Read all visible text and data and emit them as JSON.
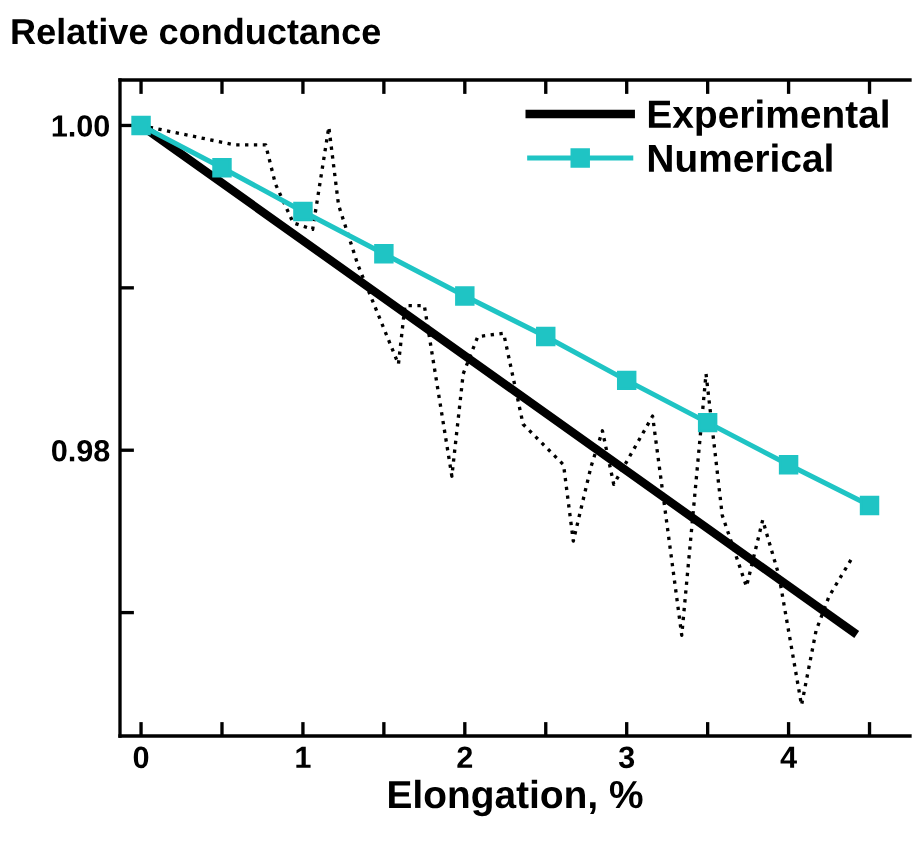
{
  "chart_data": {
    "type": "line",
    "title": "Relative conductance",
    "xlabel": "Elongation, %",
    "xlim": [
      -0.13,
      4.75
    ],
    "ylim": [
      0.9624,
      1.0028
    ],
    "xticks": [
      0,
      {
        "value": 0.5,
        "label": null
      },
      1,
      {
        "value": 1.5,
        "label": null
      },
      2,
      {
        "value": 2.5,
        "label": null
      },
      3,
      {
        "value": 3.5,
        "label": null
      },
      4,
      {
        "value": 4.5,
        "label": null
      }
    ],
    "yticks": [
      {
        "value": 1.0,
        "label": "1.00"
      },
      {
        "value": 0.99,
        "label": null
      },
      {
        "value": 0.98,
        "label": "0.98"
      },
      {
        "value": 0.97,
        "label": null
      }
    ],
    "legend": "top right",
    "grid": false,
    "series": [
      {
        "color": "#000000",
        "line_style": "dotted",
        "marker": "none",
        "x": [
          0,
          0.58,
          0.77,
          0.83,
          0.94,
          1.06,
          1.16,
          1.22,
          1.34,
          1.59,
          1.63,
          1.75,
          1.92,
          1.99,
          2.08,
          2.24,
          2.36,
          2.61,
          2.67,
          2.78,
          2.85,
          2.92,
          3.16,
          3.34,
          3.49,
          3.59,
          3.74,
          3.84,
          3.94,
          4.08,
          4.17,
          4.25,
          4.4
        ],
        "values": [
          1.0,
          0.9988,
          0.9988,
          0.9964,
          0.994,
          0.9936,
          0.9999,
          0.9951,
          0.9914,
          0.9853,
          0.9889,
          0.9889,
          0.9784,
          0.9847,
          0.987,
          0.9872,
          0.9816,
          0.9791,
          0.9744,
          0.979,
          0.9812,
          0.9779,
          0.9821,
          0.9686,
          0.9847,
          0.976,
          0.9716,
          0.9757,
          0.9723,
          0.9643,
          0.9689,
          0.971,
          0.9735
        ]
      },
      {
        "name": "Experimental",
        "color": "#000000",
        "line_style": "solid",
        "marker": "none",
        "x": [
          0,
          4.4
        ],
        "values": [
          1.0,
          0.9688
        ]
      },
      {
        "name": "Numerical",
        "color": "#1fc4c4",
        "line_style": "solid",
        "marker": "square",
        "x": [
          0,
          0.5,
          1,
          1.5,
          2,
          2.5,
          3,
          3.5,
          4,
          4.5
        ],
        "values": [
          1.0,
          0.9974,
          0.9947,
          0.9921,
          0.9895,
          0.987,
          0.9843,
          0.9817,
          0.9791,
          0.9766
        ]
      }
    ]
  }
}
